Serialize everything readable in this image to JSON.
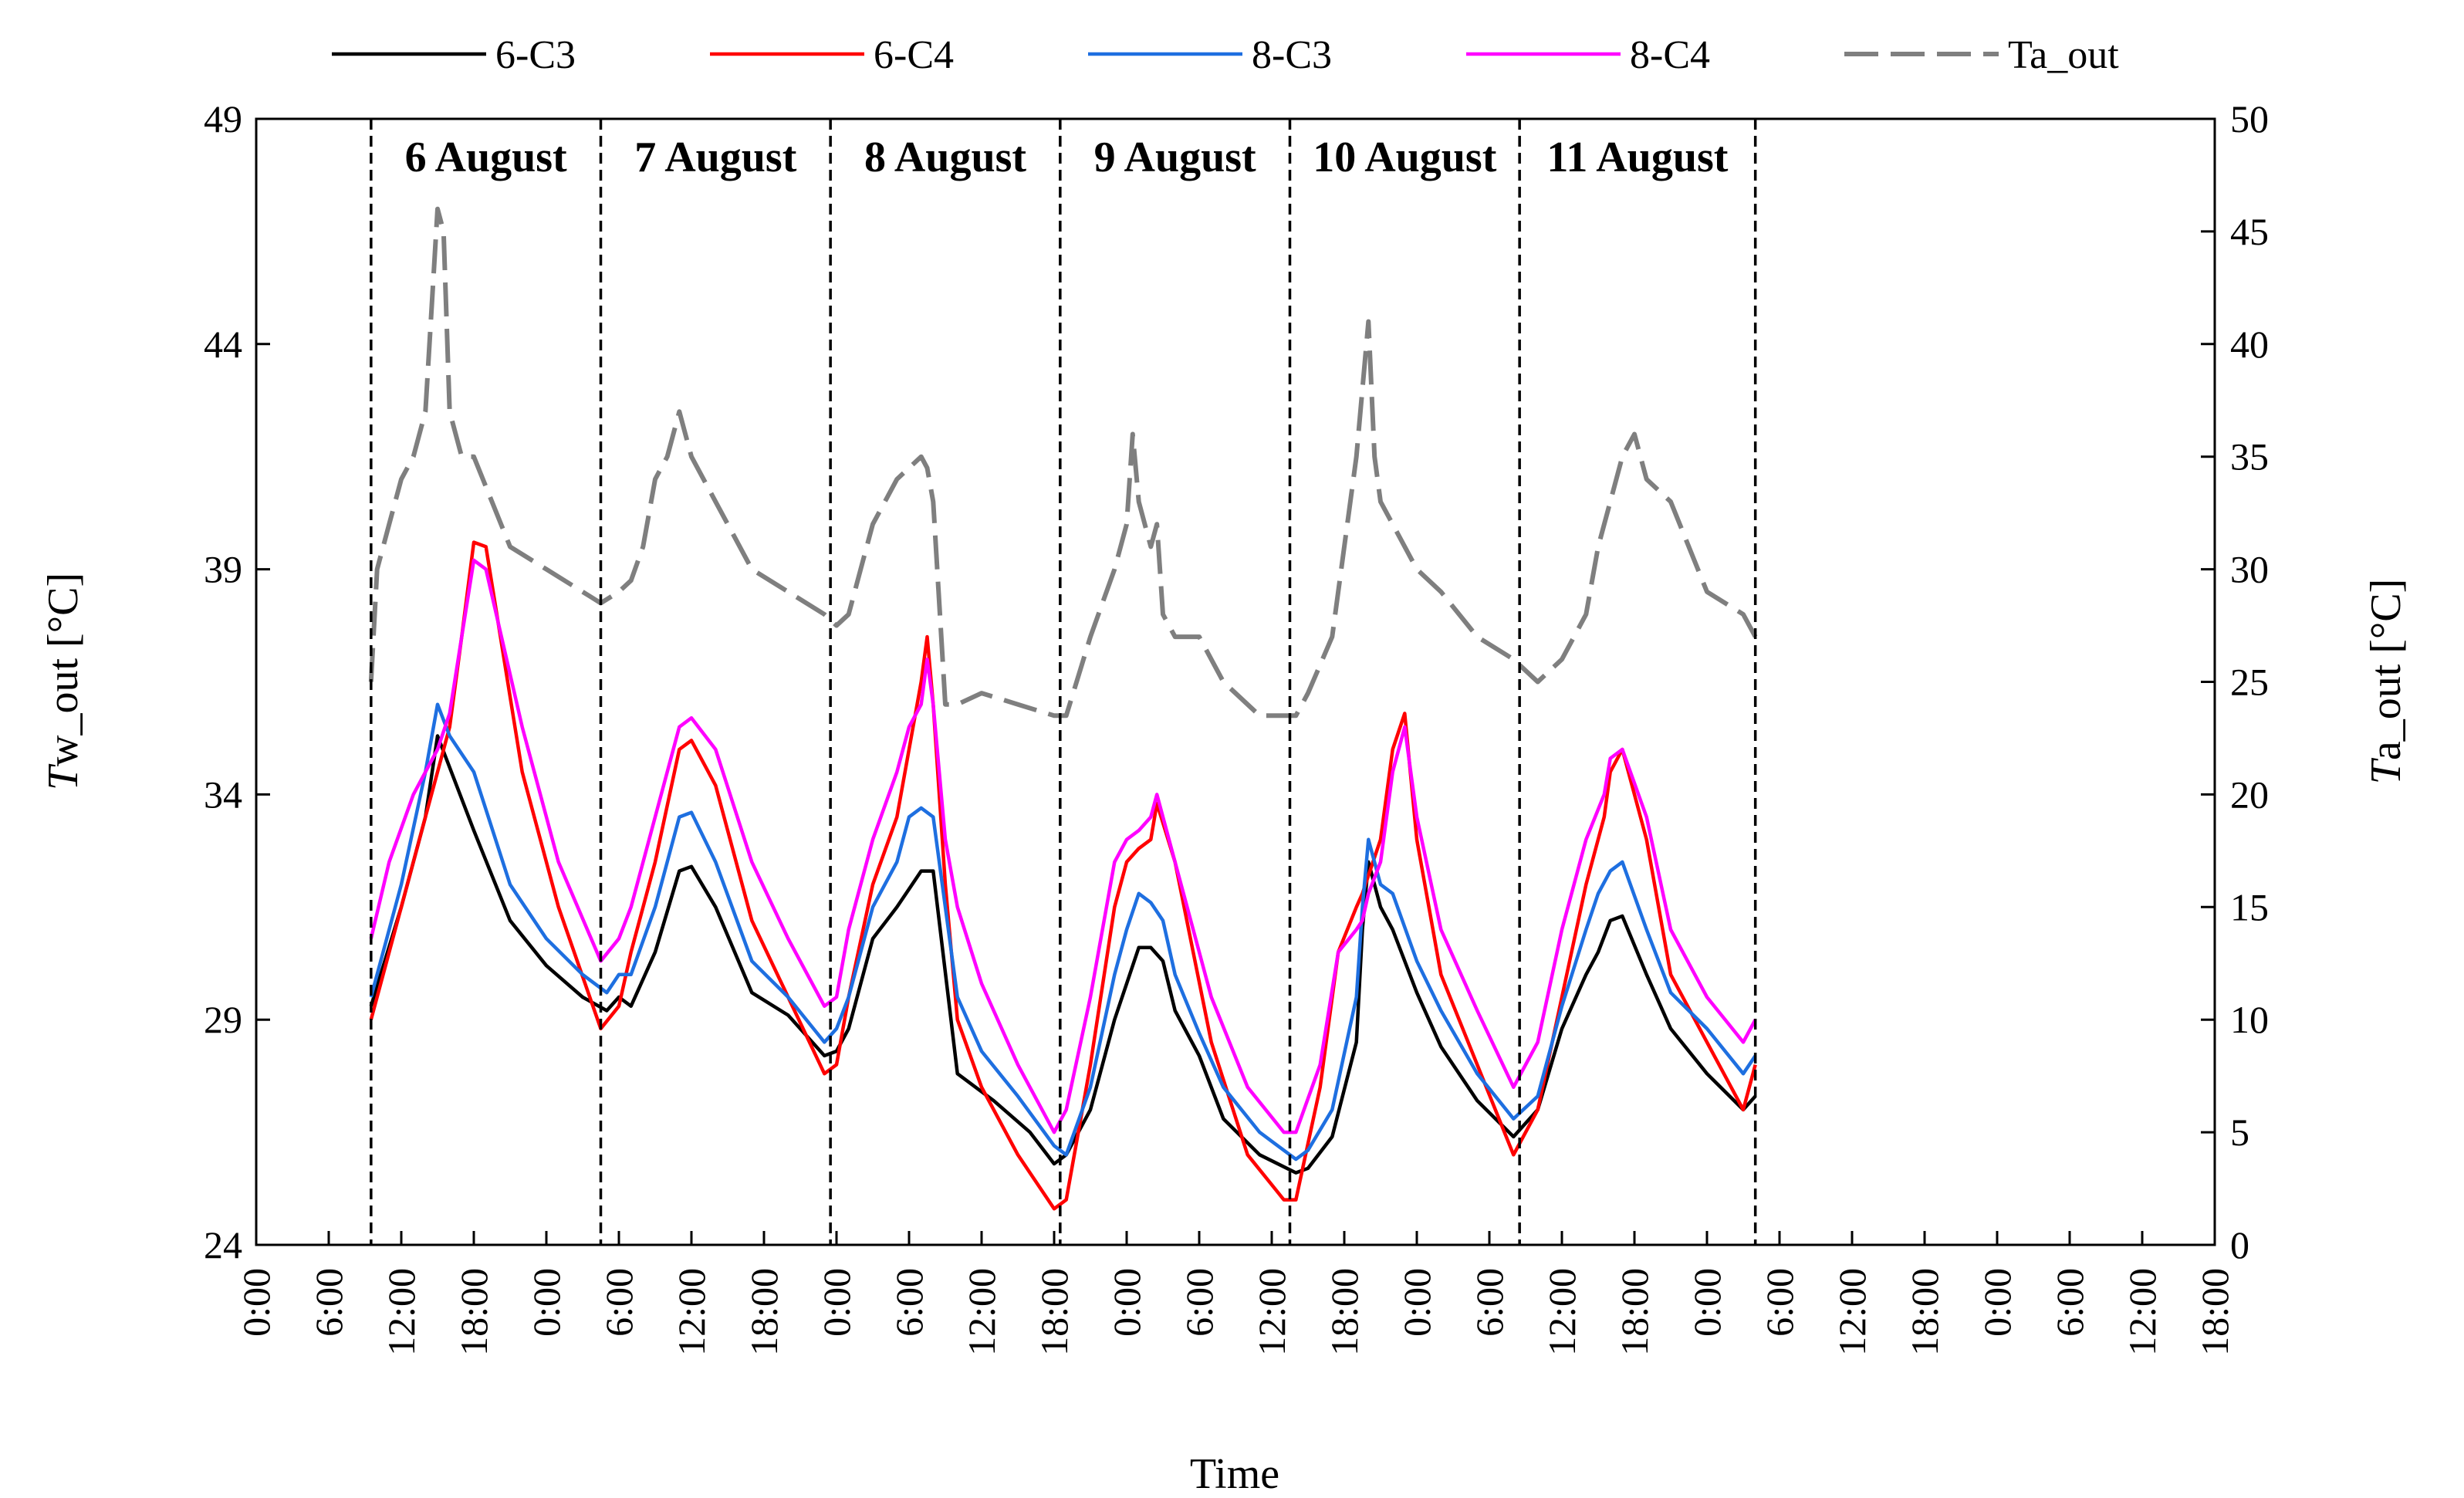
{
  "chart_data": {
    "type": "line",
    "xlabel": "Time",
    "ylabel_left": {
      "italic": "T",
      "rest": "w_out [°C]"
    },
    "ylabel_right": {
      "italic": "T",
      "rest": "a_out [°C]"
    },
    "y_left": {
      "min": 24,
      "max": 49,
      "ticks": [
        24,
        29,
        34,
        39,
        44,
        49
      ]
    },
    "y_right": {
      "min": 0,
      "max": 50,
      "ticks": [
        0,
        5,
        10,
        15,
        20,
        25,
        30,
        35,
        40,
        45,
        50
      ]
    },
    "x_range_hours": [
      0,
      162
    ],
    "x_tick_labels": [
      "0:00",
      "6:00",
      "12:00",
      "18:00",
      "0:00",
      "6:00",
      "12:00",
      "18:00",
      "0:00",
      "6:00",
      "12:00",
      "18:00",
      "0:00",
      "6:00",
      "12:00",
      "18:00",
      "0:00",
      "6:00",
      "12:00",
      "18:00",
      "0:00",
      "6:00",
      "12:00",
      "18:00",
      "0:00",
      "6:00",
      "12:00",
      "18:00"
    ],
    "day_dividers_hours": [
      9.5,
      28.5,
      47.5,
      66.5,
      85.5,
      104.5,
      124
    ],
    "day_labels": [
      "6 August",
      "7 August",
      "8 August",
      "9 August",
      "10 August",
      "11 August"
    ],
    "series": [
      {
        "name": "6-C3",
        "color": "#000000",
        "axis": "left",
        "x": [
          9.5,
          12,
          14,
          15,
          16,
          18,
          21,
          24,
          27,
          29,
          30,
          31,
          33,
          35,
          36,
          38,
          41,
          44,
          47,
          48,
          49,
          51,
          53,
          54,
          55,
          56,
          58,
          61,
          64,
          66,
          67,
          69,
          71,
          72,
          73,
          74,
          75,
          76,
          78,
          80,
          83,
          86,
          87,
          89,
          91,
          91.5,
          92,
          93,
          94,
          96,
          98,
          101,
          104,
          106,
          108,
          110,
          111,
          112,
          113,
          115,
          117,
          120,
          123,
          124
        ],
        "y": [
          29.3,
          31.5,
          33.5,
          35.3,
          34.6,
          33.2,
          31.2,
          30.2,
          29.5,
          29.2,
          29.5,
          29.3,
          30.5,
          32.3,
          32.4,
          31.5,
          29.6,
          29.1,
          28.2,
          28.3,
          28.8,
          30.8,
          31.5,
          31.9,
          32.3,
          32.3,
          27.8,
          27.2,
          26.5,
          25.8,
          26.0,
          27.0,
          29.0,
          29.8,
          30.6,
          30.6,
          30.3,
          29.2,
          28.2,
          26.8,
          26.0,
          25.6,
          25.7,
          26.4,
          28.5,
          31.0,
          32.5,
          31.5,
          31.0,
          29.6,
          28.4,
          27.2,
          26.4,
          27.0,
          28.8,
          30.0,
          30.5,
          31.2,
          31.3,
          30.0,
          28.8,
          27.8,
          27.0,
          27.3
        ]
      },
      {
        "name": "6-C4",
        "color": "#ff0000",
        "axis": "left",
        "x": [
          9.5,
          12,
          14,
          15,
          16,
          17,
          18,
          19,
          22,
          25,
          28.5,
          30,
          31,
          33,
          35,
          36,
          38,
          41,
          44,
          47,
          48,
          49,
          51,
          53,
          54,
          55,
          55.5,
          56,
          57,
          58,
          60,
          63,
          66,
          67,
          69,
          71,
          72,
          73,
          74,
          74.5,
          76,
          79,
          82,
          85,
          86,
          88,
          89.5,
          91,
          91.5,
          92,
          93,
          94,
          95,
          96,
          98,
          101,
          104,
          106,
          108,
          110,
          111.5,
          112,
          113,
          115,
          117,
          120,
          123,
          124
        ],
        "y": [
          29.0,
          31.5,
          33.5,
          34.5,
          35.5,
          37.5,
          39.6,
          39.5,
          34.5,
          31.5,
          28.8,
          29.3,
          30.5,
          32.5,
          35.0,
          35.2,
          34.2,
          31.2,
          29.5,
          27.8,
          28.0,
          29.5,
          32.0,
          33.5,
          35.0,
          36.5,
          37.5,
          36.0,
          32.0,
          29.0,
          27.5,
          26.0,
          24.8,
          25.0,
          28.0,
          31.5,
          32.5,
          32.8,
          33.0,
          33.8,
          32.5,
          28.5,
          26.0,
          25.0,
          25.0,
          27.5,
          30.5,
          31.5,
          31.8,
          32.2,
          33.0,
          35.0,
          35.8,
          33.0,
          30.0,
          28.0,
          26.0,
          27.0,
          29.5,
          32.0,
          33.5,
          34.5,
          35.0,
          33.0,
          30.0,
          28.5,
          27.0,
          28.0
        ]
      },
      {
        "name": "8-C3",
        "color": "#1e6fe0",
        "axis": "left",
        "x": [
          9.5,
          12,
          14,
          15,
          16,
          18,
          21,
          24,
          27,
          29,
          30,
          31,
          33,
          35,
          36,
          38,
          41,
          44,
          47,
          48,
          49,
          51,
          53,
          54,
          55,
          56,
          57,
          58,
          60,
          63,
          66,
          67,
          69,
          71,
          72,
          73,
          74,
          75,
          76,
          78,
          80,
          83,
          86,
          87,
          89,
          91,
          91.5,
          92,
          93,
          94,
          96,
          98,
          101,
          104,
          106,
          108,
          110,
          111,
          112,
          113,
          115,
          117,
          120,
          123,
          124
        ],
        "y": [
          29.5,
          32.0,
          34.5,
          36.0,
          35.3,
          34.5,
          32.0,
          30.8,
          30.0,
          29.6,
          30.0,
          30.0,
          31.5,
          33.5,
          33.6,
          32.5,
          30.3,
          29.5,
          28.5,
          28.8,
          29.5,
          31.5,
          32.5,
          33.5,
          33.7,
          33.5,
          31.5,
          29.5,
          28.3,
          27.3,
          26.2,
          26.0,
          27.5,
          30.0,
          31.0,
          31.8,
          31.6,
          31.2,
          30.0,
          28.7,
          27.5,
          26.5,
          25.9,
          26.1,
          27.0,
          29.5,
          31.5,
          33.0,
          32.0,
          31.8,
          30.3,
          29.2,
          27.8,
          26.8,
          27.3,
          29.3,
          31.0,
          31.8,
          32.3,
          32.5,
          31.0,
          29.6,
          28.8,
          27.8,
          28.2
        ]
      },
      {
        "name": "8-C4",
        "color": "#ff00ff",
        "axis": "left",
        "x": [
          9.5,
          11,
          13,
          15,
          16,
          17,
          18,
          19,
          22,
          25,
          28.5,
          30,
          31,
          33,
          35,
          36,
          38,
          41,
          44,
          47,
          48,
          49,
          51,
          53,
          54,
          55,
          55.5,
          56,
          57,
          58,
          60,
          63,
          66,
          67,
          69,
          71,
          72,
          73,
          74,
          74.5,
          76,
          79,
          82,
          85,
          86,
          88,
          89.5,
          91,
          91.5,
          92,
          93,
          94,
          95,
          96,
          98,
          101,
          104,
          106,
          108,
          110,
          111.5,
          112,
          113,
          115,
          117,
          120,
          123,
          124
        ],
        "y": [
          30.8,
          32.5,
          34.0,
          35.0,
          35.8,
          37.5,
          39.2,
          39.0,
          35.5,
          32.5,
          30.3,
          30.8,
          31.5,
          33.5,
          35.5,
          35.7,
          35.0,
          32.5,
          30.8,
          29.3,
          29.5,
          31.0,
          33.0,
          34.5,
          35.5,
          36.0,
          37.0,
          36.0,
          33.0,
          31.5,
          29.8,
          28.0,
          26.5,
          27.0,
          29.5,
          32.5,
          33.0,
          33.2,
          33.5,
          34.0,
          32.5,
          29.5,
          27.5,
          26.5,
          26.5,
          28.0,
          30.5,
          31.0,
          31.2,
          31.8,
          32.5,
          34.5,
          35.5,
          33.5,
          31.0,
          29.2,
          27.5,
          28.5,
          31.0,
          33.0,
          34.0,
          34.8,
          35.0,
          33.5,
          31.0,
          29.5,
          28.5,
          29.0
        ]
      },
      {
        "name": "Ta_out",
        "color": "#7f7f7f",
        "axis": "right",
        "dashed": true,
        "x": [
          9.5,
          10,
          11,
          12,
          13,
          14,
          15,
          15.5,
          16,
          17,
          18,
          21,
          24,
          27,
          28.5,
          30,
          31,
          32,
          33,
          34,
          35,
          36,
          37,
          38,
          39,
          41,
          44,
          47,
          48,
          49,
          50,
          51,
          52,
          53,
          54,
          55,
          55.5,
          56,
          57,
          58,
          60,
          63,
          66,
          67,
          69,
          71,
          72,
          72.5,
          73,
          74,
          74.5,
          75,
          76,
          78,
          80,
          83,
          86,
          87,
          89,
          91,
          92,
          92.5,
          93,
          94,
          96,
          98,
          101,
          104,
          106,
          108,
          110,
          111,
          112,
          113,
          114,
          115,
          117,
          120,
          123,
          124
        ],
        "y": [
          25,
          30,
          32,
          34,
          35,
          37,
          46,
          45,
          37,
          35,
          35,
          31,
          30,
          29,
          28.5,
          29,
          29.5,
          31,
          34,
          35,
          37,
          35,
          34,
          33,
          32,
          30,
          29,
          28,
          27.5,
          28,
          30,
          32,
          33,
          34,
          34.5,
          35,
          34.5,
          33,
          24,
          24,
          24.5,
          24,
          23.5,
          23.5,
          27,
          30,
          32,
          36,
          33,
          31,
          32,
          28,
          27,
          27,
          25,
          23.5,
          23.5,
          24.5,
          27,
          35,
          41,
          35,
          33,
          32,
          30,
          29,
          27,
          26,
          25,
          26,
          28,
          31,
          33,
          35,
          36,
          34,
          33,
          29,
          28,
          27
        ]
      }
    ]
  }
}
